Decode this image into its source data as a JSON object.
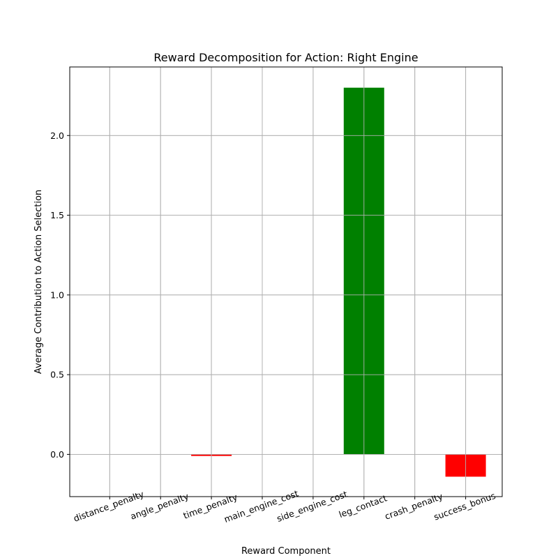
{
  "chart_data": {
    "type": "bar",
    "title": "Reward Decomposition for Action: Right Engine",
    "xlabel": "Reward Component",
    "ylabel": "Average Contribution to Action Selection",
    "categories": [
      "distance_penalty",
      "angle_penalty",
      "time_penalty",
      "main_engine_cost",
      "side_engine_cost",
      "leg_contact",
      "crash_penalty",
      "success_bonus"
    ],
    "values": [
      0.0,
      0.0,
      -0.01,
      0.0,
      0.0,
      2.3,
      0.0,
      -0.14
    ],
    "ylim": [
      -0.265,
      2.43
    ],
    "yticks": [
      0.0,
      0.5,
      1.0,
      1.5,
      2.0
    ],
    "ytick_labels": [
      "0.0",
      "0.5",
      "1.0",
      "1.5",
      "2.0"
    ],
    "grid": true,
    "colors": {
      "positive": "#008000",
      "negative": "#ff0000"
    }
  }
}
